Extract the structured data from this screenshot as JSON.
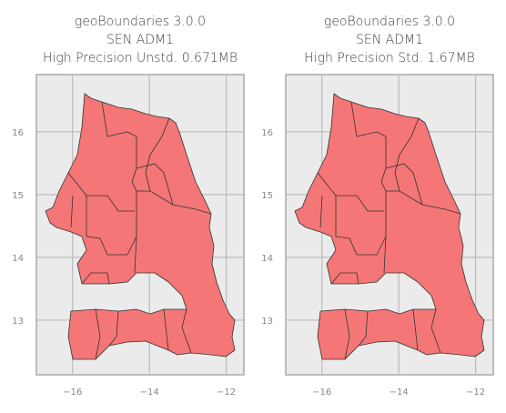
{
  "chart_data": [
    {
      "type": "map",
      "title": [
        "geoBoundaries 3.0.0",
        "SEN ADM1",
        "High Precision Unstd. 0.671MB"
      ],
      "xlim": [
        -16.94,
        -11.54
      ],
      "ylim": [
        12.13,
        16.91
      ],
      "xticks": [
        {
          "value": -16,
          "label": "−16"
        },
        {
          "value": -14,
          "label": "−14"
        },
        {
          "value": -12,
          "label": "−12"
        }
      ],
      "yticks": [
        13,
        14,
        15,
        16
      ],
      "color": "#f47676",
      "grid": true
    },
    {
      "type": "map",
      "title": [
        "geoBoundaries 3.0.0",
        "SEN ADM1",
        "High Precision Std. 1.67MB"
      ],
      "xlim": [
        -16.94,
        -11.54
      ],
      "ylim": [
        12.13,
        16.91
      ],
      "xticks": [
        {
          "value": -16,
          "label": "−16"
        },
        {
          "value": -14,
          "label": "−14"
        },
        {
          "value": -12,
          "label": "−12"
        }
      ],
      "yticks": [
        13,
        14,
        15,
        16
      ],
      "color": "#f47676",
      "grid": true
    }
  ]
}
